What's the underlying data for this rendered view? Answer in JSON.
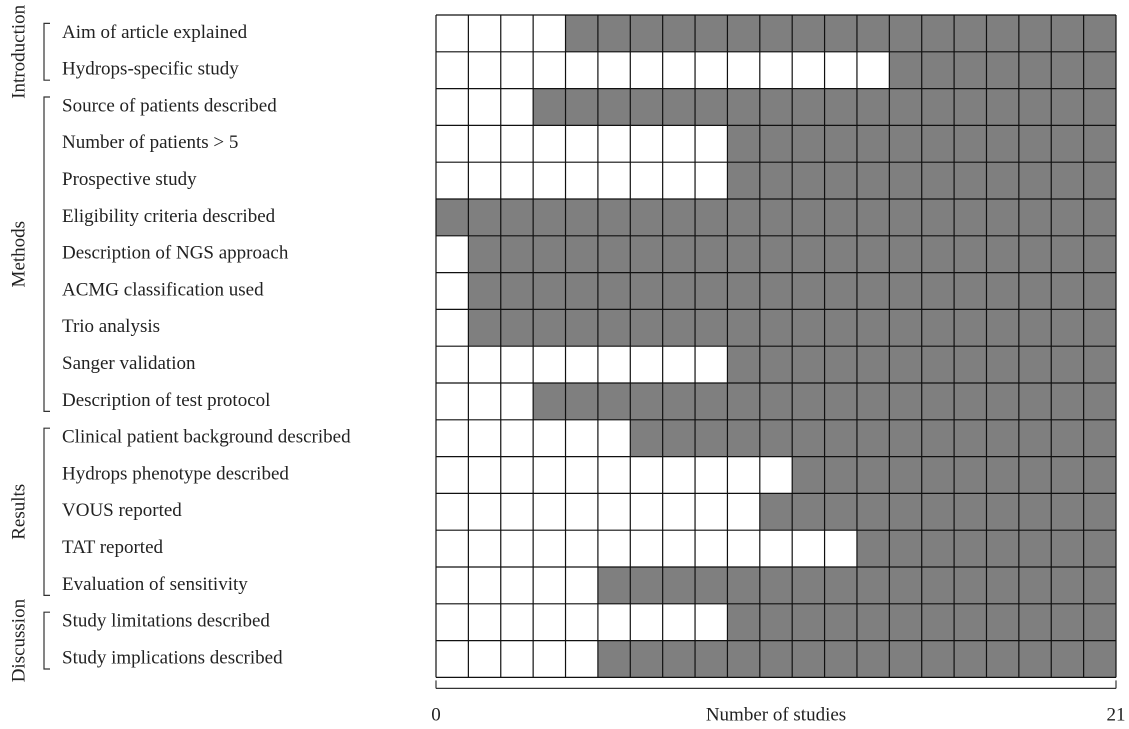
{
  "chart_data": {
    "type": "bar",
    "x_label": "Number of studies",
    "xlim": [
      0,
      21
    ],
    "xticks": [
      0,
      21
    ],
    "color": "#7f7f7f",
    "groups": [
      {
        "name": "Introduction",
        "categories": [
          "Aim of article explained",
          "Hydrops-specific study"
        ],
        "values": [
          17,
          7
        ]
      },
      {
        "name": "Methods",
        "categories": [
          "Source of patients described",
          "Number of patients > 5",
          "Prospective study",
          "Eligibility criteria described",
          "Description of NGS approach",
          "ACMG classification used",
          "Trio analysis",
          "Sanger validation",
          "Description of test protocol"
        ],
        "values": [
          18,
          12,
          12,
          21,
          20,
          20,
          20,
          12,
          18
        ]
      },
      {
        "name": "Results",
        "categories": [
          "Clinical patient background described",
          "Hydrops phenotype described",
          "VOUS reported",
          "TAT reported",
          "Evaluation of sensitivity"
        ],
        "values": [
          15,
          10,
          11,
          8,
          16
        ]
      },
      {
        "name": "Discussion",
        "categories": [
          "Study limitations described",
          "Study implications described"
        ],
        "values": [
          12,
          16
        ]
      }
    ]
  }
}
